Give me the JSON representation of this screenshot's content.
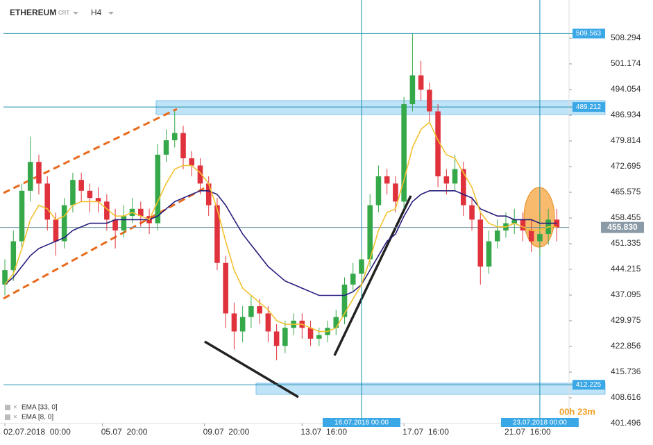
{
  "header": {
    "symbol": "ETHEREUM",
    "feed": "CRT",
    "timeframe": "H4"
  },
  "chart_data": {
    "type": "candlestick",
    "x": [
      "2018-07-02 00:00",
      "2018-07-02 08:00",
      "2018-07-02 16:00",
      "2018-07-03 00:00",
      "2018-07-03 08:00",
      "2018-07-03 16:00",
      "2018-07-04 00:00",
      "2018-07-04 08:00",
      "2018-07-04 16:00",
      "2018-07-05 00:00",
      "2018-07-05 08:00",
      "2018-07-05 16:00",
      "2018-07-06 00:00",
      "2018-07-06 08:00",
      "2018-07-06 16:00",
      "2018-07-07 00:00",
      "2018-07-07 08:00",
      "2018-07-07 16:00",
      "2018-07-08 00:00",
      "2018-07-08 08:00",
      "2018-07-08 16:00",
      "2018-07-09 00:00",
      "2018-07-09 08:00",
      "2018-07-09 16:00",
      "2018-07-10 00:00",
      "2018-07-10 08:00",
      "2018-07-10 16:00",
      "2018-07-11 00:00",
      "2018-07-11 08:00",
      "2018-07-11 16:00",
      "2018-07-12 00:00",
      "2018-07-12 08:00",
      "2018-07-12 16:00",
      "2018-07-13 00:00",
      "2018-07-13 08:00",
      "2018-07-13 16:00",
      "2018-07-14 00:00",
      "2018-07-14 08:00",
      "2018-07-14 16:00",
      "2018-07-15 00:00",
      "2018-07-15 08:00",
      "2018-07-15 16:00",
      "2018-07-16 00:00",
      "2018-07-16 08:00",
      "2018-07-16 16:00",
      "2018-07-17 00:00",
      "2018-07-17 08:00",
      "2018-07-17 16:00",
      "2018-07-18 00:00",
      "2018-07-18 08:00",
      "2018-07-18 16:00",
      "2018-07-19 00:00",
      "2018-07-19 08:00",
      "2018-07-19 16:00",
      "2018-07-20 00:00",
      "2018-07-20 08:00",
      "2018-07-20 16:00",
      "2018-07-21 00:00",
      "2018-07-21 08:00",
      "2018-07-21 16:00",
      "2018-07-22 00:00",
      "2018-07-22 08:00",
      "2018-07-22 16:00",
      "2018-07-23 00:00",
      "2018-07-23 08:00",
      "2018-07-23 16:00"
    ],
    "open": [
      440,
      444,
      452,
      466,
      474,
      468,
      458,
      452,
      462,
      469,
      466,
      464,
      463,
      458,
      455,
      459,
      461,
      459,
      457,
      476,
      480,
      482,
      475,
      473,
      468,
      462,
      446,
      432,
      427,
      431,
      434,
      432,
      427,
      423,
      428,
      430,
      428,
      425,
      426,
      428,
      431,
      440,
      443,
      447,
      462,
      470,
      468,
      463,
      490,
      498,
      494,
      488,
      470,
      468,
      472,
      462,
      458,
      445,
      452,
      455,
      457,
      458,
      455,
      452,
      454,
      458
    ],
    "high": [
      447,
      455,
      468,
      481,
      476,
      470,
      460,
      464,
      471,
      471,
      468,
      467,
      465,
      461,
      462,
      464,
      463,
      461,
      479,
      483,
      488,
      484,
      477,
      475,
      470,
      464,
      448,
      435,
      434,
      437,
      436,
      434,
      429,
      430,
      432,
      432,
      430,
      428,
      430,
      433,
      442,
      446,
      449,
      465,
      473,
      472,
      470,
      492,
      509.5,
      502,
      496,
      490,
      472,
      476,
      474,
      464,
      460,
      455,
      458,
      460,
      461,
      460,
      458,
      460,
      461,
      461
    ],
    "low": [
      437,
      441,
      450,
      463,
      465,
      455,
      448,
      450,
      460,
      463,
      460,
      460,
      455,
      450,
      453,
      457,
      456,
      454,
      455,
      474,
      478,
      472,
      470,
      465,
      459,
      444,
      428,
      422,
      424,
      428,
      429,
      424,
      419,
      421,
      426,
      425,
      423,
      423,
      424,
      426,
      429,
      438,
      441,
      445,
      460,
      465,
      460,
      461,
      488,
      491,
      485,
      467,
      465,
      466,
      459,
      455,
      440,
      443,
      450,
      453,
      454,
      452,
      449,
      448,
      451,
      452
    ],
    "close": [
      444,
      452,
      466,
      474,
      468,
      458,
      452,
      462,
      469,
      466,
      464,
      463,
      458,
      455,
      459,
      461,
      459,
      457,
      476,
      480,
      482,
      475,
      473,
      468,
      462,
      446,
      432,
      427,
      431,
      434,
      432,
      427,
      423,
      428,
      430,
      428,
      425,
      426,
      428,
      431,
      440,
      443,
      447,
      462,
      470,
      468,
      463,
      490,
      498,
      494,
      488,
      470,
      468,
      472,
      462,
      458,
      445,
      452,
      455,
      457,
      458,
      455,
      452,
      454,
      458,
      455.83
    ],
    "up_color": "#35a84a",
    "down_color": "#e0323c",
    "series": [
      {
        "name": "EMA [33, 0]",
        "color": "#241b7c",
        "values": [
          440,
          442,
          445,
          448,
          450,
          451,
          452,
          453,
          455,
          456,
          457,
          457,
          457,
          458,
          458,
          458,
          458,
          458,
          459,
          461,
          463,
          464,
          465,
          466,
          466,
          465,
          462,
          458,
          454,
          451,
          448,
          445,
          443,
          441,
          440,
          439,
          438,
          437,
          437,
          437,
          437,
          438,
          440,
          444,
          448,
          452,
          454,
          459,
          463,
          465,
          466,
          466,
          466,
          466,
          465,
          464,
          461,
          460,
          459,
          459,
          458,
          458,
          458,
          457,
          457,
          457
        ]
      },
      {
        "name": "EMA [8, 0]",
        "color": "#f2c12e",
        "values": [
          440,
          443,
          450,
          458,
          462,
          461,
          458,
          459,
          462,
          463,
          463,
          463,
          461,
          459,
          459,
          460,
          459,
          458,
          463,
          468,
          472,
          473,
          473,
          471,
          468,
          461,
          452,
          444,
          439,
          437,
          435,
          433,
          430,
          429,
          429,
          429,
          428,
          427,
          427,
          428,
          432,
          436,
          440,
          447,
          455,
          460,
          461,
          469,
          478,
          483,
          485,
          480,
          476,
          475,
          471,
          467,
          460,
          457,
          456,
          456,
          457,
          456,
          455,
          455,
          456,
          456
        ]
      }
    ],
    "ylim": [
      401.496,
      512.14
    ],
    "yticks": [
      401.496,
      408.616,
      415.736,
      422.856,
      429.975,
      437.095,
      444.215,
      451.335,
      458.455,
      465.575,
      472.695,
      479.814,
      486.934,
      494.054,
      501.174,
      508.294
    ],
    "xlim": [
      "2018-07-01 19:24",
      "2018-07-24 03:30"
    ],
    "xticks": [
      {
        "value": "2018-07-02 00:00",
        "label": "02.07.2018  00:00"
      },
      {
        "value": "2018-07-05 20:00",
        "label": "05.07  20:00"
      },
      {
        "value": "2018-07-09 20:00",
        "label": "09.07  20:00"
      },
      {
        "value": "2018-07-13 16:00",
        "label": "13.07  16:00"
      },
      {
        "value": "2018-07-17 16:00",
        "label": "17.07  16:00"
      },
      {
        "value": "2018-07-21 16:00",
        "label": "21.07  16:00"
      }
    ],
    "levels": [
      509.563,
      489.212,
      412.225
    ],
    "last_price": {
      "value": 455.83,
      "label": "455.830"
    },
    "vlines": [
      {
        "value": "2018-07-16 00:00",
        "label": "16.07.2018 00:00"
      },
      {
        "value": "2018-07-23 00:00",
        "label": "23.07.2018 00:00"
      }
    ],
    "countdown": "00h 23m"
  }
}
